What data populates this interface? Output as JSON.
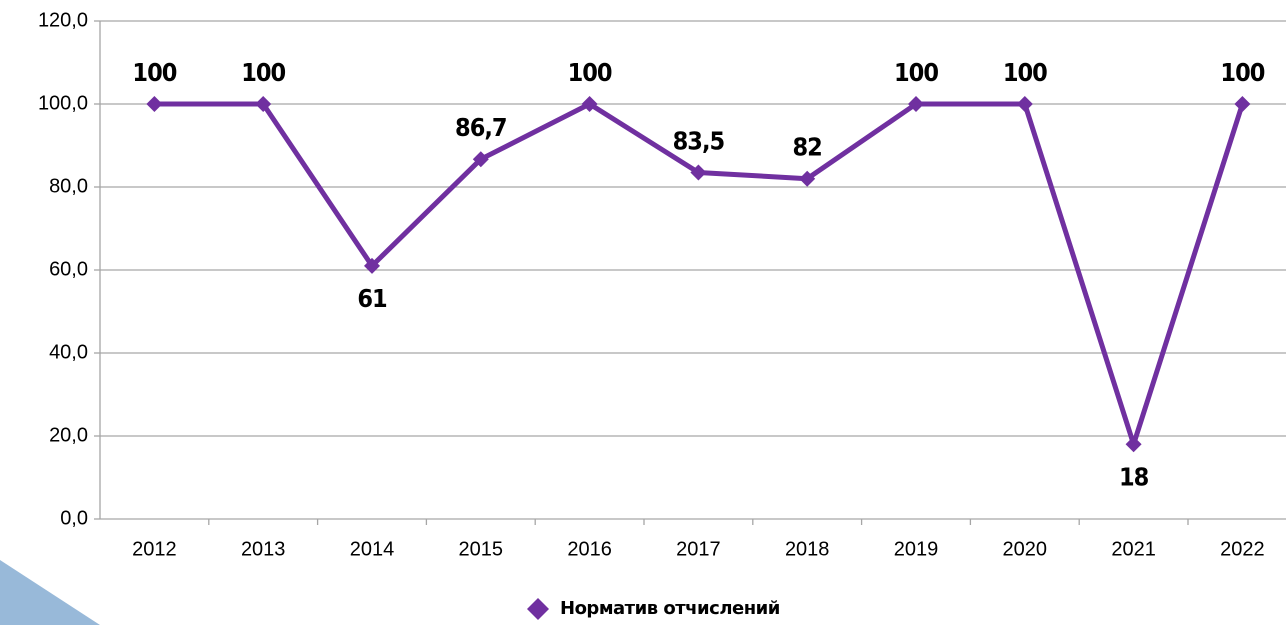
{
  "chart_data": {
    "type": "line",
    "categories": [
      "2012",
      "2013",
      "2014",
      "2015",
      "2016",
      "2017",
      "2018",
      "2019",
      "2020",
      "2021",
      "2022"
    ],
    "series": [
      {
        "name": "Норматив отчислений",
        "color": "#7030a0",
        "values": [
          100,
          100,
          61,
          86.7,
          100,
          83.5,
          82,
          100,
          100,
          18,
          100
        ],
        "value_labels": [
          "100",
          "100",
          "61",
          "86,7",
          "100",
          "83,5",
          "82",
          "100",
          "100",
          "18",
          "100"
        ]
      }
    ],
    "ylim": [
      0,
      120
    ],
    "yticks": [
      {
        "value": 0,
        "label": "0,0"
      },
      {
        "value": 20,
        "label": "20,0"
      },
      {
        "value": 40,
        "label": "40,0"
      },
      {
        "value": 60,
        "label": "60,0"
      },
      {
        "value": 80,
        "label": "80,0"
      },
      {
        "value": 100,
        "label": "100,0"
      },
      {
        "value": 120,
        "label": "120,0"
      }
    ],
    "grid": true,
    "legend": "bottom"
  }
}
